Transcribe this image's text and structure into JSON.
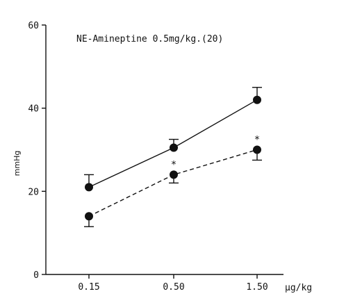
{
  "chart_data": {
    "type": "line",
    "title": "NE-Amineptine 0.5mg/kg.(20)",
    "ylabel": "mmHg",
    "x_unit": "µg/kg",
    "categories": [
      "0.15",
      "0.50",
      "1.50"
    ],
    "ylim": [
      0,
      60
    ],
    "yticks": [
      "0",
      "20",
      "40",
      "60"
    ],
    "grid": false,
    "legend": "none",
    "series": [
      {
        "style": "solid",
        "values": [
          21,
          30.5,
          42
        ],
        "error_up": [
          3,
          2,
          3
        ],
        "error_down": [
          0,
          0,
          0
        ],
        "significance": [
          "",
          "",
          ""
        ]
      },
      {
        "style": "dashed",
        "values": [
          14,
          24,
          30
        ],
        "error_up": [
          0,
          0,
          0
        ],
        "error_down": [
          2.5,
          2,
          2.5
        ],
        "significance": [
          "",
          "*",
          "*"
        ]
      }
    ],
    "colors": {
      "ink": "#111111",
      "background": "#ffffff"
    }
  }
}
